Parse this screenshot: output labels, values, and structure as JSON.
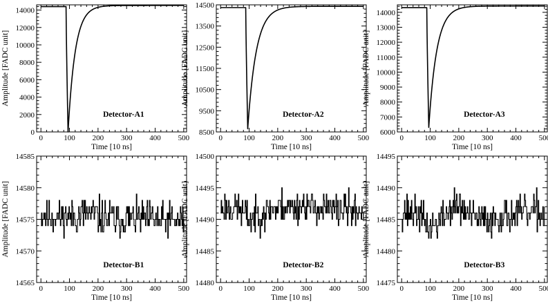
{
  "chart_data": [
    {
      "id": "A1",
      "type": "line",
      "label": "Detector-A1",
      "xlabel": "Time [10 ns]",
      "ylabel": "Amplitude [FADC unit]",
      "xlim": [
        -15,
        510
      ],
      "ylim": [
        0,
        14600
      ],
      "xticks": [
        0,
        100,
        200,
        300,
        400,
        500
      ],
      "xtick_labels": [
        "0",
        "100",
        "200",
        "300",
        "400",
        "500"
      ],
      "yticks": [
        0,
        2000,
        4000,
        6000,
        8000,
        10000,
        12000,
        14000
      ],
      "ytick_labels": [
        "0",
        "2000",
        "4000",
        "6000",
        "8000",
        "10000",
        "12000",
        "14000"
      ],
      "waveform": {
        "kind": "pulse",
        "baseline": 14400,
        "start": 88,
        "minimum_time": 95,
        "minimum": 0,
        "final": 14530,
        "tau": 25
      }
    },
    {
      "id": "A2",
      "type": "line",
      "label": "Detector-A2",
      "xlabel": "Time [10 ns]",
      "ylabel": "Amplitude [FADC unit]",
      "xlim": [
        -15,
        510
      ],
      "ylim": [
        8500,
        14500
      ],
      "xticks": [
        0,
        100,
        200,
        300,
        400,
        500
      ],
      "xtick_labels": [
        "0",
        "100",
        "200",
        "300",
        "400",
        "500"
      ],
      "yticks": [
        8500,
        9500,
        10500,
        11500,
        12500,
        13500,
        14500
      ],
      "ytick_labels": [
        "8500",
        "9500",
        "10500",
        "11500",
        "12500",
        "13500",
        "14500"
      ],
      "waveform": {
        "kind": "pulse",
        "baseline": 14370,
        "start": 88,
        "minimum_time": 95,
        "minimum": 8650,
        "final": 14430,
        "tau": 30
      }
    },
    {
      "id": "A3",
      "type": "line",
      "label": "Detector-A3",
      "xlabel": "Time [10 ns]",
      "ylabel": "Amplitude [FADC unit]",
      "xlim": [
        -15,
        510
      ],
      "ylim": [
        6000,
        14500
      ],
      "xticks": [
        0,
        100,
        200,
        300,
        400,
        500
      ],
      "xtick_labels": [
        "0",
        "100",
        "200",
        "300",
        "400",
        "500"
      ],
      "yticks": [
        6000,
        7000,
        8000,
        9000,
        10000,
        11000,
        12000,
        13000,
        14000
      ],
      "ytick_labels": [
        "6000",
        "7000",
        "8000",
        "9000",
        "10000",
        "11000",
        "12000",
        "13000",
        "14000"
      ],
      "waveform": {
        "kind": "pulse",
        "baseline": 14310,
        "start": 88,
        "minimum_time": 95,
        "minimum": 6300,
        "final": 14420,
        "tau": 28
      }
    },
    {
      "id": "B1",
      "type": "line",
      "label": "Detector-B1",
      "xlabel": "Time [10 ns]",
      "ylabel": "Amplitude [FADC unit]",
      "xlim": [
        -15,
        510
      ],
      "ylim": [
        14565,
        14585
      ],
      "xticks": [
        0,
        100,
        200,
        300,
        400,
        500
      ],
      "xtick_labels": [
        "0",
        "100",
        "200",
        "300",
        "400",
        "500"
      ],
      "yticks": [
        14565,
        14570,
        14575,
        14580,
        14585
      ],
      "ytick_labels": [
        "14565",
        "14570",
        "14575",
        "14580",
        "14585"
      ],
      "waveform": {
        "kind": "noise",
        "mean": 14575.2,
        "spread": 1.4,
        "min_clip": 14572,
        "max_clip": 14579,
        "wander": [
          [
            0,
            0.3
          ],
          [
            100,
            0.2
          ],
          [
            160,
            0.8
          ],
          [
            200,
            0.3
          ],
          [
            260,
            -0.3
          ],
          [
            350,
            0.0
          ],
          [
            420,
            -0.5
          ],
          [
            500,
            -0.4
          ]
        ],
        "seed": 11
      }
    },
    {
      "id": "B2",
      "type": "line",
      "label": "Detector-B2",
      "xlabel": "Time [10 ns]",
      "ylabel": "Amplitude [FADC unit]",
      "xlim": [
        -15,
        510
      ],
      "ylim": [
        14480,
        14500
      ],
      "xticks": [
        0,
        100,
        200,
        300,
        400,
        500
      ],
      "xtick_labels": [
        "0",
        "100",
        "200",
        "300",
        "400",
        "500"
      ],
      "yticks": [
        14480,
        14485,
        14490,
        14495,
        14500
      ],
      "ytick_labels": [
        "14480",
        "14485",
        "14490",
        "14495",
        "14500"
      ],
      "waveform": {
        "kind": "noise",
        "mean": 14491.3,
        "spread": 1.3,
        "min_clip": 14486,
        "max_clip": 14495,
        "wander": [
          [
            0,
            0.6
          ],
          [
            60,
            0.4
          ],
          [
            100,
            -1.3
          ],
          [
            140,
            -0.4
          ],
          [
            200,
            0.6
          ],
          [
            300,
            1.0
          ],
          [
            350,
            0.3
          ],
          [
            420,
            0.3
          ],
          [
            500,
            -0.1
          ]
        ],
        "seed": 23
      }
    },
    {
      "id": "B3",
      "type": "line",
      "label": "Detector-B3",
      "xlabel": "Time [10 ns]",
      "ylabel": "Amplitude [FADC unit]",
      "xlim": [
        -15,
        510
      ],
      "ylim": [
        14475,
        14495
      ],
      "xticks": [
        0,
        100,
        200,
        300,
        400,
        500
      ],
      "xtick_labels": [
        "0",
        "100",
        "200",
        "300",
        "400",
        "500"
      ],
      "yticks": [
        14475,
        14480,
        14485,
        14490,
        14495
      ],
      "ytick_labels": [
        "14475",
        "14480",
        "14485",
        "14490",
        "14495"
      ],
      "waveform": {
        "kind": "noise",
        "mean": 14485.8,
        "spread": 1.35,
        "min_clip": 14480,
        "max_clip": 14491,
        "wander": [
          [
            0,
            0.5
          ],
          [
            50,
            0.3
          ],
          [
            100,
            -2.3
          ],
          [
            140,
            -0.8
          ],
          [
            190,
            1.6
          ],
          [
            240,
            -0.5
          ],
          [
            300,
            -1.0
          ],
          [
            360,
            -0.1
          ],
          [
            420,
            0.2
          ],
          [
            480,
            0.4
          ],
          [
            500,
            -0.6
          ]
        ],
        "seed": 37
      }
    }
  ]
}
